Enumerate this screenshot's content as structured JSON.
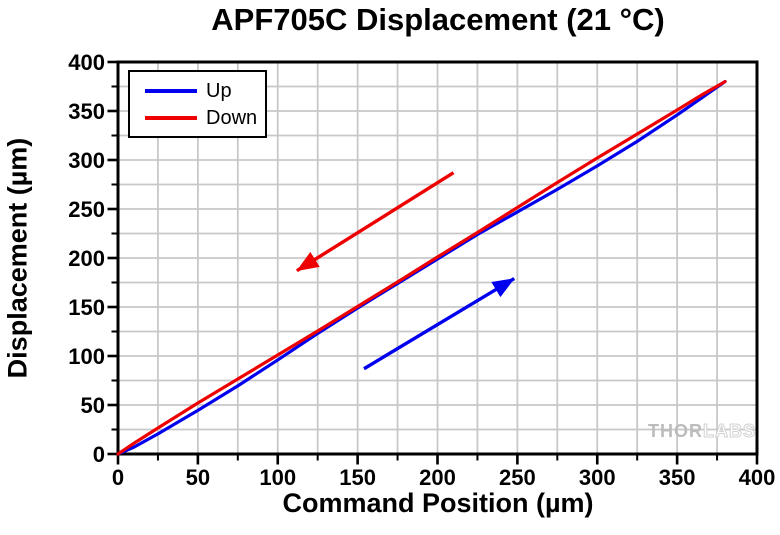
{
  "watermark": {
    "thor": "THOR",
    "labs": "LABS"
  },
  "colors": {
    "up_series": "#0000ee",
    "down_series": "#ee0000",
    "grid": "#c8c8c8",
    "frame": "#000000",
    "background": "#ffffff",
    "watermark_solid": "#bcbcbc",
    "watermark_outline": "#d2d2d2"
  },
  "chart_data": {
    "type": "line",
    "title": "APF705C Displacement (21 °C)",
    "xlabel": "Command Position (µm)",
    "ylabel": "Displacement (µm)",
    "xlim": [
      0,
      400
    ],
    "ylim": [
      0,
      400
    ],
    "x_major_tick": 50,
    "x_minor_tick": 25,
    "y_major_tick": 50,
    "y_minor_tick": 25,
    "grid": "on",
    "grid_interval": 25,
    "legend": {
      "position": "top-left",
      "entries": [
        {
          "label": "Up",
          "color": "#0000ee"
        },
        {
          "label": "Down",
          "color": "#ee0000"
        }
      ]
    },
    "series": [
      {
        "name": "Up",
        "color": "#0000ee",
        "points": [
          [
            0,
            0
          ],
          [
            10,
            7
          ],
          [
            25,
            20.5
          ],
          [
            50,
            44.5
          ],
          [
            75,
            69.5
          ],
          [
            100,
            96
          ],
          [
            125,
            123
          ],
          [
            150,
            149
          ],
          [
            175,
            174
          ],
          [
            200,
            199
          ],
          [
            225,
            224
          ],
          [
            250,
            247
          ],
          [
            275,
            270
          ],
          [
            300,
            294
          ],
          [
            325,
            319
          ],
          [
            350,
            346
          ],
          [
            365,
            363
          ],
          [
            380,
            380
          ]
        ]
      },
      {
        "name": "Down",
        "color": "#ee0000",
        "points": [
          [
            380,
            380
          ],
          [
            365,
            366
          ],
          [
            350,
            351
          ],
          [
            325,
            326.5
          ],
          [
            300,
            302
          ],
          [
            275,
            277
          ],
          [
            250,
            251.5
          ],
          [
            225,
            226
          ],
          [
            200,
            201
          ],
          [
            175,
            175.5
          ],
          [
            150,
            150.5
          ],
          [
            125,
            125.5
          ],
          [
            100,
            101
          ],
          [
            75,
            76.5
          ],
          [
            50,
            52
          ],
          [
            25,
            26.5
          ],
          [
            10,
            11
          ],
          [
            0,
            0
          ]
        ]
      }
    ],
    "annotations": [
      {
        "type": "arrow",
        "name": "down-direction-arrow",
        "color": "#ee0000",
        "from": [
          210,
          287
        ],
        "to": [
          112,
          187
        ]
      },
      {
        "type": "arrow",
        "name": "up-direction-arrow",
        "color": "#0000ee",
        "from": [
          154,
          87
        ],
        "to": [
          248,
          179
        ]
      }
    ]
  }
}
